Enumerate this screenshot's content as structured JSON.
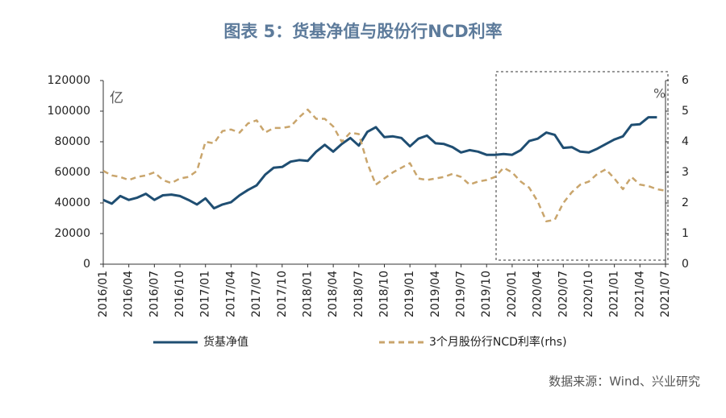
{
  "chart_data": {
    "type": "line",
    "title": "图表 5：货基净值与股份行NCD利率",
    "y_unit": "亿",
    "y2_unit": "%",
    "source": "数据来源：Wind、兴业研究",
    "categories": [
      "2016/01",
      null,
      null,
      "2016/04",
      null,
      null,
      "2016/07",
      null,
      null,
      "2016/10",
      null,
      null,
      "2017/01",
      null,
      null,
      "2017/04",
      null,
      null,
      "2017/07",
      null,
      null,
      "2017/10",
      null,
      null,
      "2018/01",
      null,
      null,
      "2018/04",
      null,
      null,
      "2018/07",
      null,
      null,
      "2018/10",
      null,
      null,
      "2019/01",
      null,
      null,
      "2019/04",
      null,
      null,
      "2019/07",
      null,
      null,
      "2019/10",
      null,
      null,
      "2020/01",
      null,
      null,
      "2020/04",
      null,
      null,
      "2020/07",
      null,
      null,
      "2020/10",
      null,
      null,
      "2021/01",
      null,
      null,
      "2021/04",
      null,
      null,
      "2021/07"
    ],
    "series": [
      {
        "name": "货基净值",
        "color": "#1f4e72",
        "dash": false,
        "values": [
          42000,
          39500,
          44500,
          42000,
          43500,
          46000,
          42000,
          45000,
          45500,
          44500,
          42000,
          39000,
          43000,
          36500,
          39000,
          40500,
          45000,
          48500,
          51500,
          58500,
          63000,
          63500,
          67000,
          68000,
          67500,
          73500,
          78000,
          73500,
          78500,
          82500,
          77500,
          86500,
          89500,
          83000,
          83500,
          82500,
          77000,
          82000,
          84000,
          79000,
          78500,
          76500,
          73000,
          74500,
          73500,
          71500,
          71500,
          72000,
          71500,
          74500,
          80500,
          82000,
          86000,
          84500,
          76000,
          76500,
          73500,
          73000,
          75500,
          78500,
          81500,
          83500,
          91000,
          91500,
          96000,
          96000,
          null
        ]
      },
      {
        "name": "3个月股份行NCD利率(rhs)",
        "color": "#c9a56c",
        "dash": true,
        "axis": "y2",
        "values": [
          3.05,
          2.9,
          2.85,
          2.75,
          2.85,
          2.9,
          3.0,
          2.75,
          2.65,
          2.8,
          2.85,
          3.05,
          4.0,
          3.95,
          4.35,
          4.4,
          4.3,
          4.6,
          4.7,
          4.3,
          4.45,
          4.45,
          4.5,
          4.8,
          5.05,
          4.75,
          4.75,
          4.5,
          4.0,
          4.3,
          4.25,
          3.3,
          2.6,
          2.8,
          3.0,
          3.15,
          3.3,
          2.8,
          2.75,
          2.8,
          2.85,
          2.95,
          2.85,
          2.6,
          2.7,
          2.75,
          2.85,
          3.15,
          3.0,
          2.7,
          2.5,
          2.05,
          1.4,
          1.45,
          2.0,
          2.35,
          2.6,
          2.7,
          2.95,
          3.1,
          2.8,
          2.45,
          2.85,
          2.6,
          2.55,
          2.45,
          2.4
        ]
      }
    ],
    "ylim": [
      0,
      120000
    ],
    "yticks": [
      0,
      20000,
      40000,
      60000,
      80000,
      100000,
      120000
    ],
    "y2lim": [
      0,
      6
    ],
    "y2ticks": [
      0,
      1,
      2,
      3,
      4,
      5,
      6
    ],
    "grid": false,
    "legend": "bottom"
  }
}
